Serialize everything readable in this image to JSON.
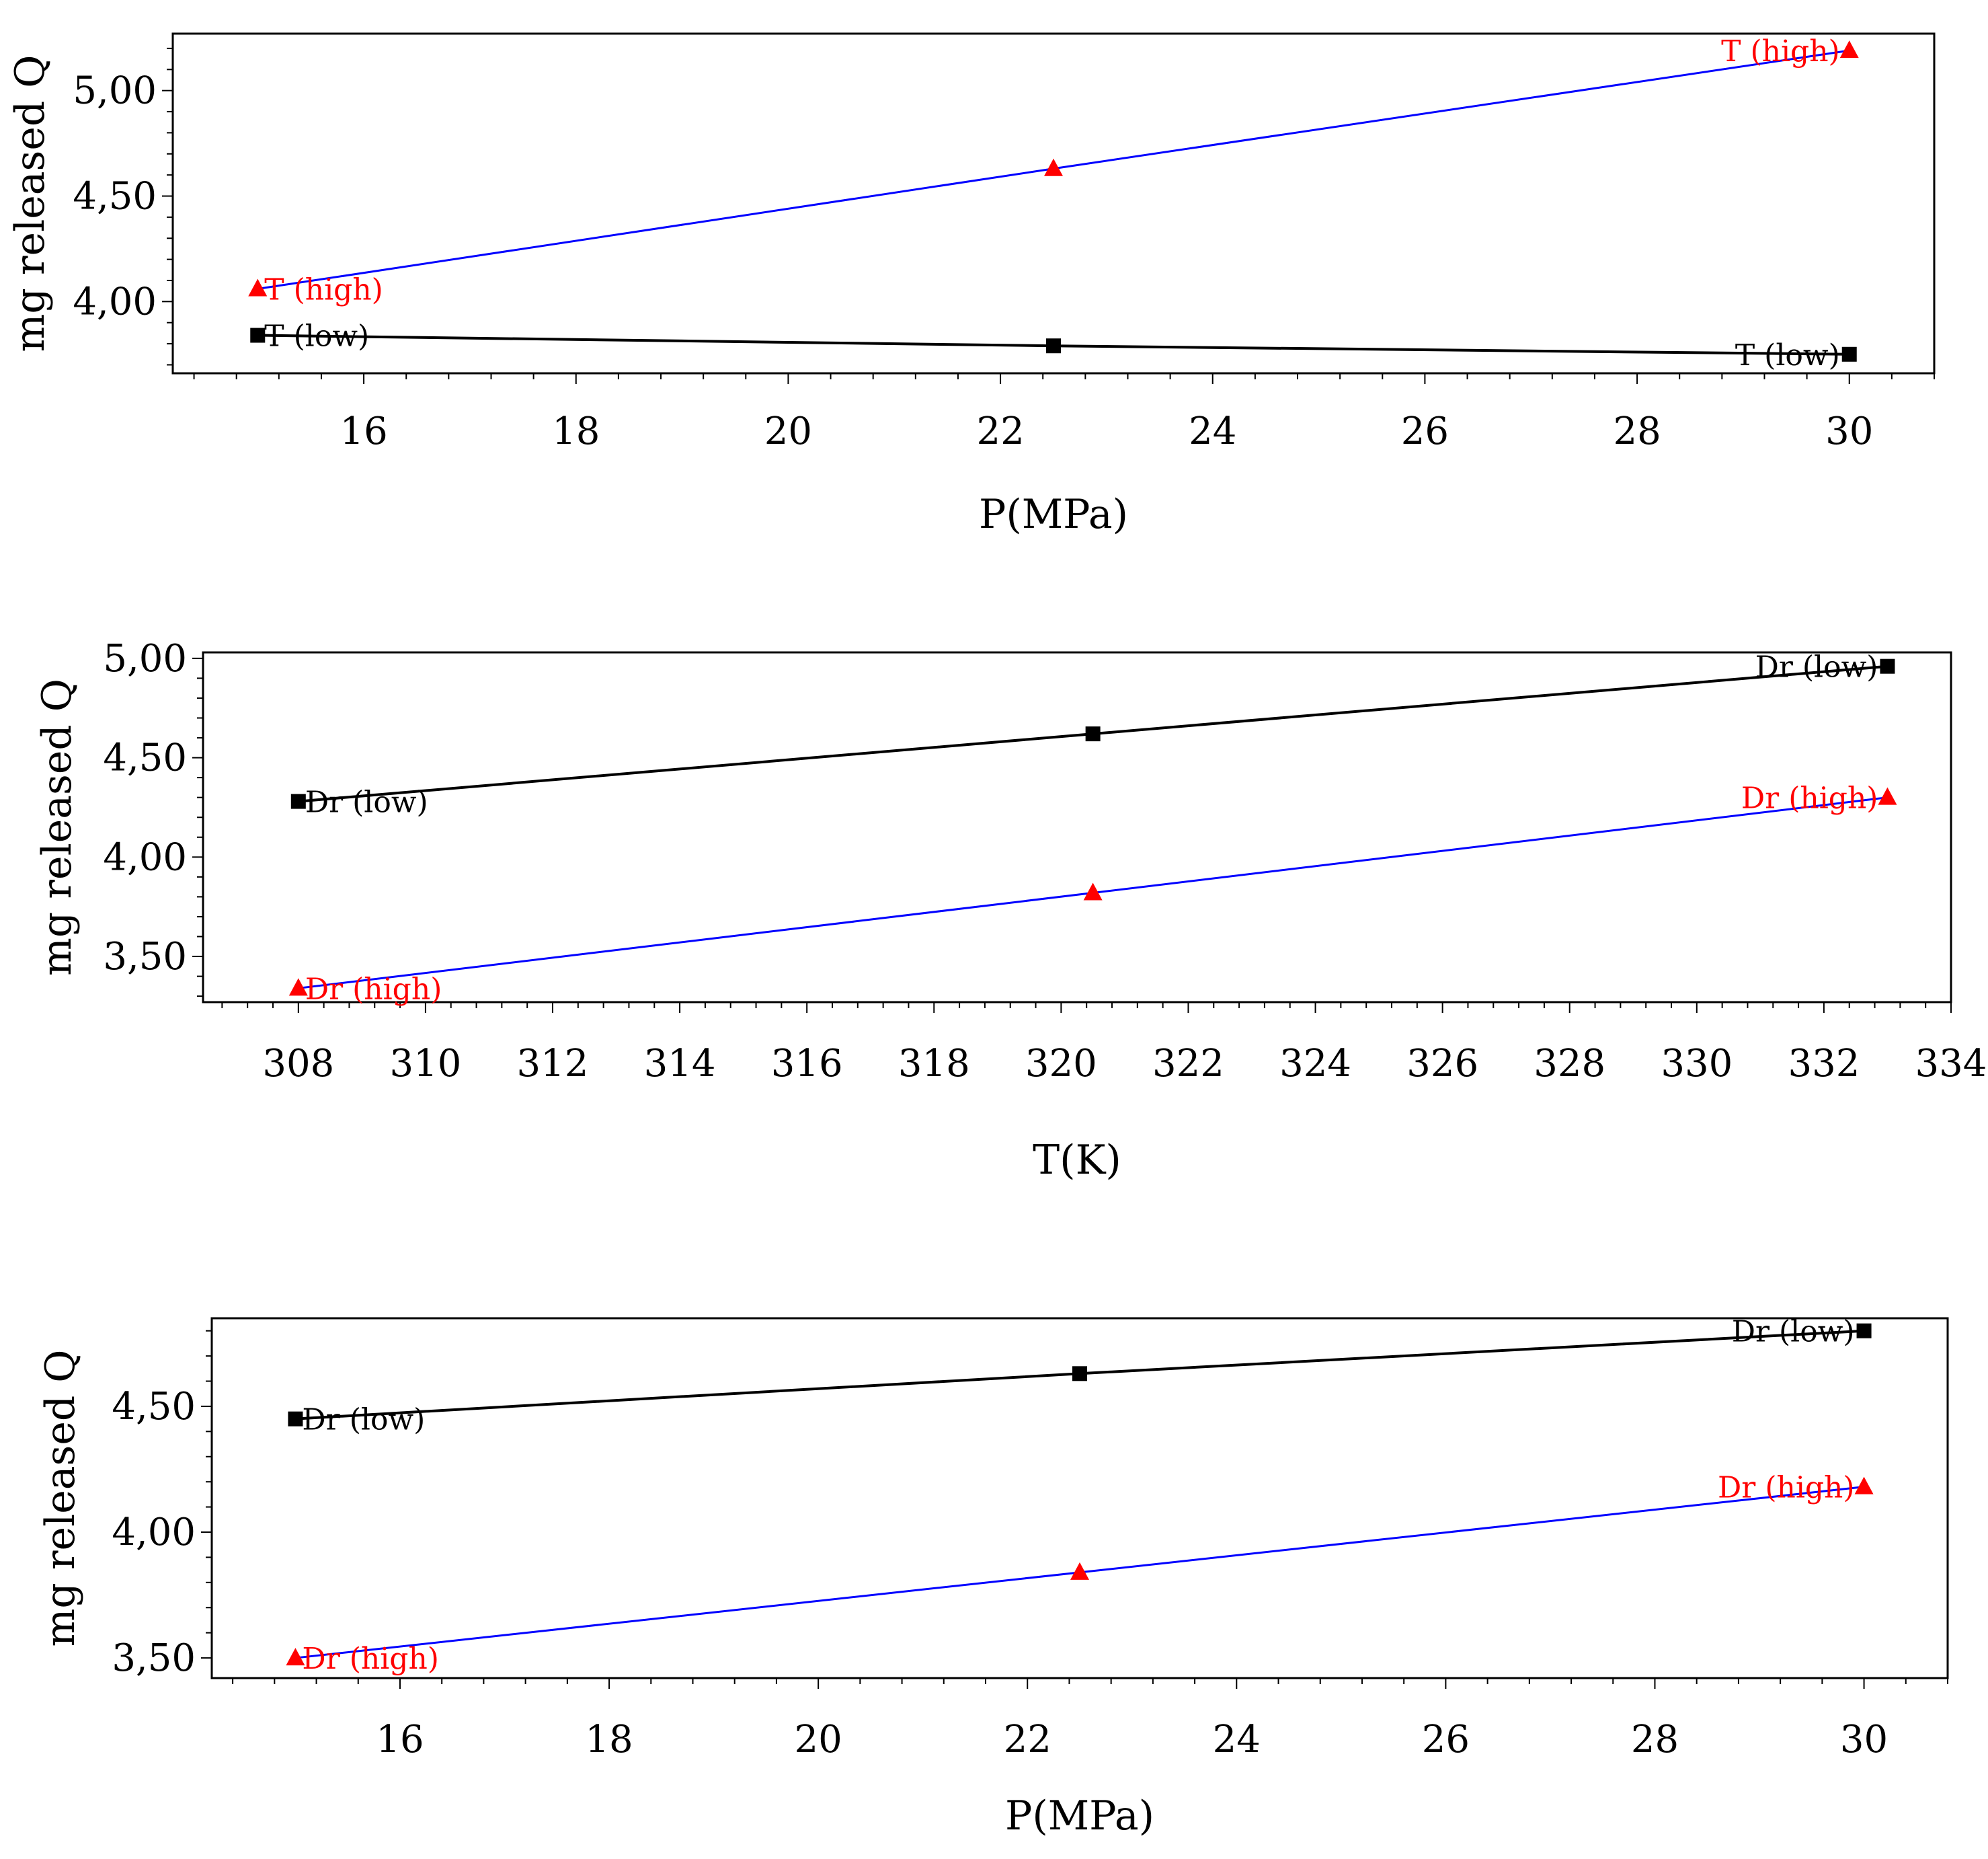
{
  "chart_data": [
    {
      "type": "line",
      "title": "",
      "xlabel": "P(MPa)",
      "ylabel": "mg released Q",
      "xlim": [
        14.2,
        30.8
      ],
      "ylim": [
        3.66,
        5.27
      ],
      "xticks": [
        16,
        18,
        20,
        22,
        24,
        26,
        28,
        30
      ],
      "yticks": [
        4.0,
        4.5,
        5.0
      ],
      "ytick_labels": [
        "4,00",
        "4,50",
        "5,00"
      ],
      "series": [
        {
          "name": "T (high)",
          "color": "#ff0000",
          "line_color": "#0000ff",
          "marker": "triangle",
          "x": [
            15,
            22.5,
            30
          ],
          "y": [
            4.06,
            4.63,
            5.19
          ],
          "point_labels": [
            {
              "index": 0,
              "text": "T (high)",
              "side": "right"
            },
            {
              "index": 2,
              "text": "T (high)",
              "side": "left"
            }
          ]
        },
        {
          "name": "T (low)",
          "color": "#000000",
          "line_color": "#000000",
          "marker": "square",
          "x": [
            15,
            22.5,
            30
          ],
          "y": [
            3.84,
            3.79,
            3.75
          ],
          "point_labels": [
            {
              "index": 0,
              "text": "T (low)",
              "side": "right"
            },
            {
              "index": 2,
              "text": "T (low)",
              "side": "left"
            }
          ]
        }
      ]
    },
    {
      "type": "line",
      "title": "",
      "xlabel": "T(K)",
      "ylabel": "mg released Q",
      "xlim": [
        306.5,
        334.0
      ],
      "ylim": [
        3.27,
        5.03
      ],
      "xticks": [
        308,
        310,
        312,
        314,
        316,
        318,
        320,
        322,
        324,
        326,
        328,
        330,
        332,
        334
      ],
      "yticks": [
        3.5,
        4.0,
        4.5,
        5.0
      ],
      "ytick_labels": [
        "3,50",
        "4,00",
        "4,50",
        "5,00"
      ],
      "series": [
        {
          "name": "Dr (low)",
          "color": "#000000",
          "line_color": "#000000",
          "marker": "square",
          "x": [
            308,
            320.5,
            333
          ],
          "y": [
            4.28,
            4.62,
            4.96
          ],
          "point_labels": [
            {
              "index": 0,
              "text": "Dr (low)",
              "side": "right"
            },
            {
              "index": 2,
              "text": "Dr (low)",
              "side": "left"
            }
          ]
        },
        {
          "name": "Dr (high)",
          "color": "#ff0000",
          "line_color": "#0000ff",
          "marker": "triangle",
          "x": [
            308,
            320.5,
            333
          ],
          "y": [
            3.34,
            3.82,
            4.3
          ],
          "point_labels": [
            {
              "index": 0,
              "text": "Dr (high)",
              "side": "right"
            },
            {
              "index": 2,
              "text": "Dr (high)",
              "side": "left"
            }
          ]
        }
      ]
    },
    {
      "type": "line",
      "title": "",
      "xlabel": "P(MPa)",
      "ylabel": "mg released Q",
      "xlim": [
        14.2,
        30.8
      ],
      "ylim": [
        3.42,
        4.85
      ],
      "xticks": [
        16,
        18,
        20,
        22,
        24,
        26,
        28,
        30
      ],
      "yticks": [
        3.5,
        4.0,
        4.5
      ],
      "ytick_labels": [
        "3,50",
        "4,00",
        "4,50"
      ],
      "series": [
        {
          "name": "Dr (low)",
          "color": "#000000",
          "line_color": "#000000",
          "marker": "square",
          "x": [
            15,
            22.5,
            30
          ],
          "y": [
            4.45,
            4.63,
            4.8
          ],
          "point_labels": [
            {
              "index": 0,
              "text": "Dr (low)",
              "side": "right"
            },
            {
              "index": 2,
              "text": "Dr (low)",
              "side": "left"
            }
          ]
        },
        {
          "name": "Dr (high)",
          "color": "#ff0000",
          "line_color": "#0000ff",
          "marker": "triangle",
          "x": [
            15,
            22.5,
            30
          ],
          "y": [
            3.5,
            3.84,
            4.18
          ],
          "point_labels": [
            {
              "index": 0,
              "text": "Dr (high)",
              "side": "right"
            },
            {
              "index": 2,
              "text": "Dr (high)",
              "side": "left"
            }
          ]
        }
      ]
    }
  ]
}
